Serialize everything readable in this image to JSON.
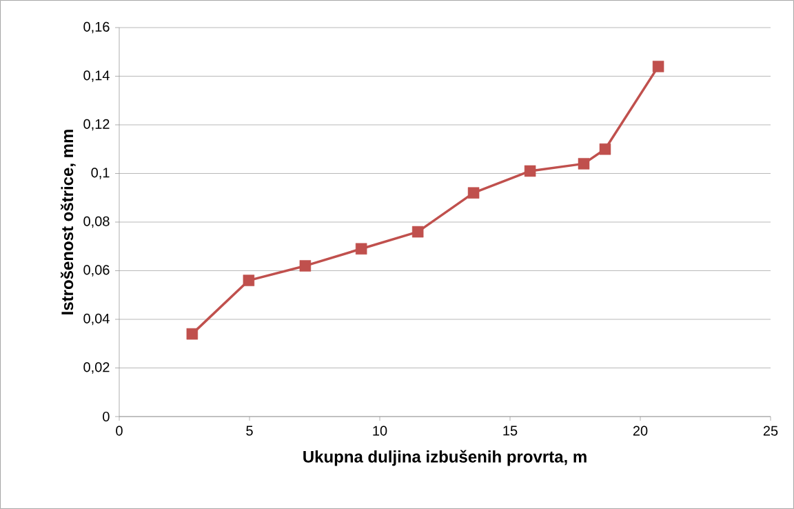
{
  "chart_data": {
    "type": "line",
    "xlabel": "Ukupna duljina izbušenih provrta, m",
    "ylabel": "Istrošenost oštrice, mm",
    "x": [
      2.8,
      4.97,
      7.14,
      9.29,
      11.46,
      13.6,
      15.77,
      17.83,
      18.65,
      20.69
    ],
    "series": [
      {
        "color": "#c0504d",
        "values": [
          0.034,
          0.056,
          0.062,
          0.069,
          0.076,
          0.092,
          0.101,
          0.104,
          0.11,
          0.144
        ]
      }
    ],
    "xlim": [
      0,
      25
    ],
    "xticks": [
      0,
      5,
      10,
      15,
      20,
      25
    ],
    "ylim": [
      0,
      0.16
    ],
    "yticks": [
      0,
      {
        "value": 0.02,
        "label": "0,02"
      },
      {
        "value": 0.04,
        "label": "0,04"
      },
      {
        "value": 0.06,
        "label": "0,06"
      },
      {
        "value": 0.08,
        "label": "0,08"
      },
      {
        "value": 0.1,
        "label": "0,1"
      },
      {
        "value": 0.12,
        "label": "0,12"
      },
      {
        "value": 0.14,
        "label": "0,14"
      },
      {
        "value": 0.16,
        "label": "0,16"
      }
    ],
    "grid": "y",
    "marker": "square",
    "line_style": "solid"
  }
}
